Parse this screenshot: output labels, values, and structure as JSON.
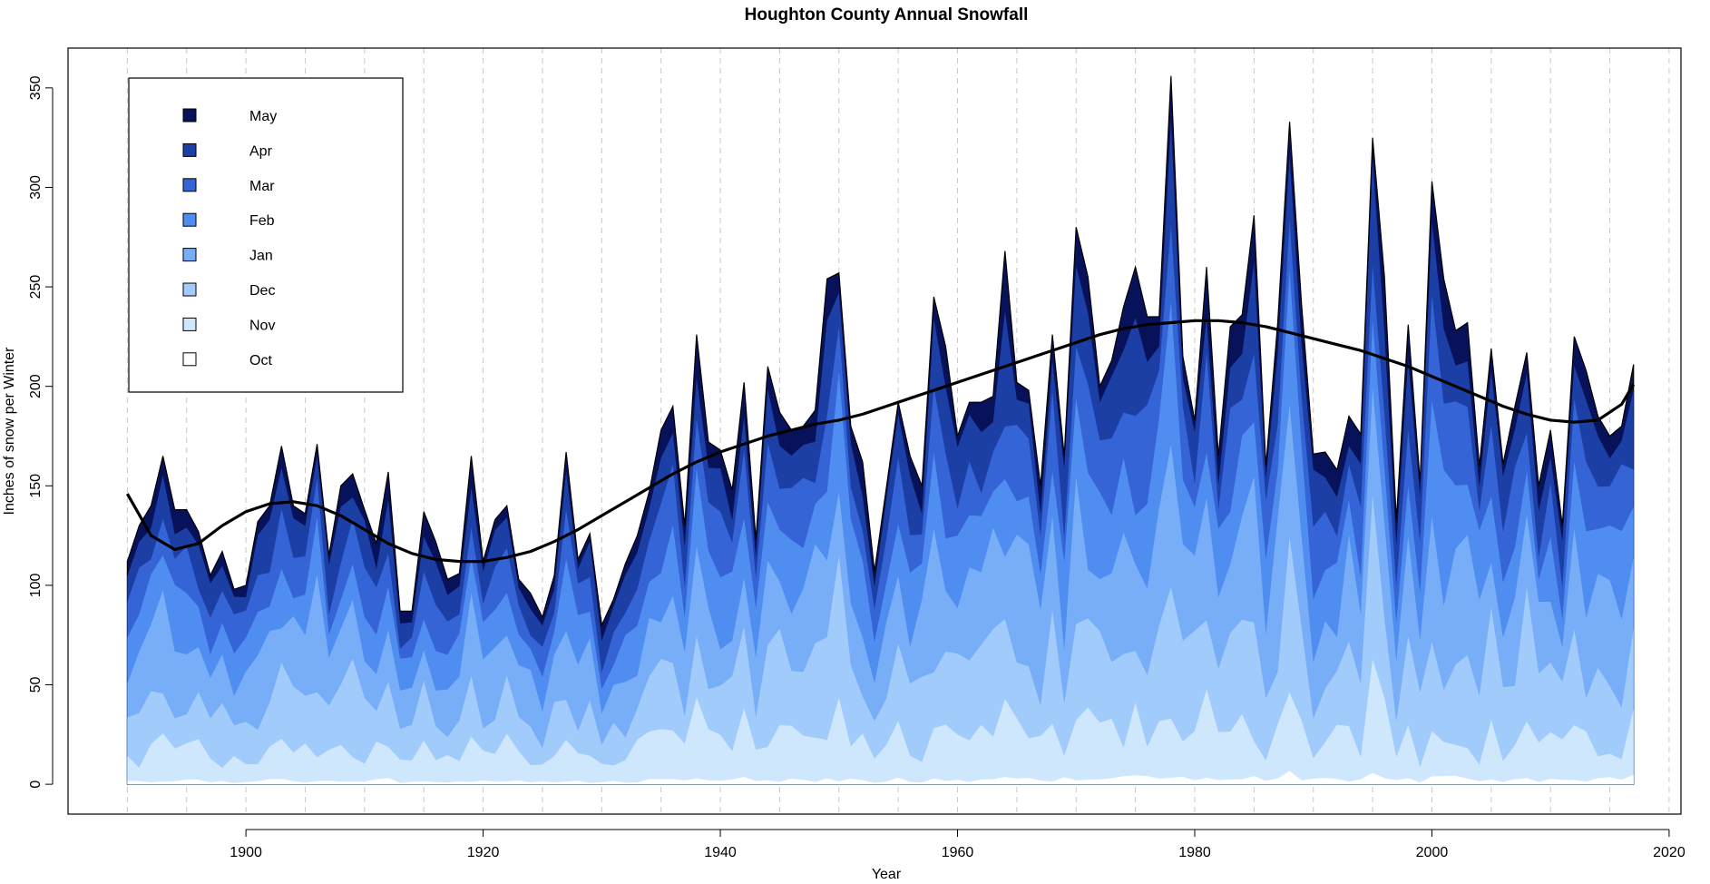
{
  "chart_data": {
    "type": "area",
    "stacked": true,
    "title": "Houghton County Annual Snowfall",
    "xlabel": "Year",
    "ylabel": "Inches of snow per Winter",
    "xlim": [
      1885,
      2021
    ],
    "ylim": [
      -15,
      370
    ],
    "x_ticks": [
      1900,
      1920,
      1940,
      1960,
      1980,
      2000,
      2020
    ],
    "y_ticks": [
      0,
      50,
      100,
      150,
      200,
      250,
      300,
      350
    ],
    "grid": "vertical dashed lines every 5 years",
    "legend_position": "top-left",
    "legend": [
      {
        "label": "May",
        "color": "#08125a"
      },
      {
        "label": "Apr",
        "color": "#1c3fa6"
      },
      {
        "label": "Mar",
        "color": "#3464d6"
      },
      {
        "label": "Feb",
        "color": "#4f8ef0"
      },
      {
        "label": "Jan",
        "color": "#78adf8"
      },
      {
        "label": "Dec",
        "color": "#a1cbfb"
      },
      {
        "label": "Nov",
        "color": "#cfe7fd"
      },
      {
        "label": "Oct",
        "color": "#ffffff"
      }
    ],
    "series_order_bottom_to_top": [
      "Oct",
      "Nov",
      "Dec",
      "Jan",
      "Feb",
      "Mar",
      "Apr",
      "May"
    ],
    "years": [
      1890,
      1891,
      1892,
      1893,
      1894,
      1895,
      1896,
      1897,
      1898,
      1899,
      1900,
      1901,
      1902,
      1903,
      1904,
      1905,
      1906,
      1907,
      1908,
      1909,
      1910,
      1911,
      1912,
      1913,
      1914,
      1915,
      1916,
      1917,
      1918,
      1919,
      1920,
      1921,
      1922,
      1923,
      1924,
      1925,
      1926,
      1927,
      1928,
      1929,
      1930,
      1931,
      1932,
      1933,
      1934,
      1935,
      1936,
      1937,
      1938,
      1939,
      1940,
      1941,
      1942,
      1943,
      1944,
      1945,
      1946,
      1947,
      1948,
      1949,
      1950,
      1951,
      1952,
      1953,
      1954,
      1955,
      1956,
      1957,
      1958,
      1959,
      1960,
      1961,
      1962,
      1963,
      1964,
      1965,
      1966,
      1967,
      1968,
      1969,
      1970,
      1971,
      1972,
      1973,
      1974,
      1975,
      1976,
      1977,
      1978,
      1979,
      1980,
      1981,
      1982,
      1983,
      1984,
      1985,
      1986,
      1987,
      1988,
      1989,
      1990,
      1991,
      1992,
      1993,
      1994,
      1995,
      1996,
      1997,
      1998,
      1999,
      2000,
      2001,
      2002,
      2003,
      2004,
      2005,
      2006,
      2007,
      2008,
      2009,
      2010,
      2011,
      2012,
      2013,
      2014,
      2015,
      2016,
      2017
    ],
    "totals": [
      112,
      130,
      140,
      165,
      138,
      138,
      127,
      105,
      117,
      98,
      100,
      132,
      140,
      170,
      140,
      136,
      171,
      115,
      150,
      156,
      138,
      121,
      157,
      87,
      87,
      137,
      122,
      103,
      106,
      165,
      112,
      133,
      140,
      103,
      96,
      84,
      105,
      167,
      113,
      126,
      80,
      93,
      111,
      125,
      147,
      178,
      190,
      130,
      226,
      172,
      168,
      148,
      202,
      123,
      210,
      187,
      178,
      180,
      188,
      254,
      257,
      180,
      162,
      107,
      149,
      192,
      165,
      150,
      245,
      220,
      175,
      192,
      192,
      195,
      268,
      202,
      198,
      150,
      226,
      165,
      280,
      255,
      200,
      213,
      240,
      260,
      235,
      235,
      356,
      215,
      183,
      260,
      165,
      230,
      236,
      286,
      160,
      232,
      333,
      242,
      166,
      167,
      158,
      185,
      176,
      325,
      255,
      133,
      231,
      152,
      303,
      254,
      228,
      232,
      160,
      219,
      161,
      190,
      217,
      150,
      178,
      130,
      225,
      208,
      185,
      175,
      180,
      211
    ],
    "trend_line": [
      [
        1890,
        146
      ],
      [
        1892,
        125
      ],
      [
        1894,
        118
      ],
      [
        1896,
        121
      ],
      [
        1898,
        130
      ],
      [
        1900,
        137
      ],
      [
        1902,
        141
      ],
      [
        1904,
        142
      ],
      [
        1906,
        140
      ],
      [
        1908,
        135
      ],
      [
        1910,
        128
      ],
      [
        1912,
        121
      ],
      [
        1914,
        116
      ],
      [
        1916,
        113
      ],
      [
        1918,
        112
      ],
      [
        1920,
        112
      ],
      [
        1922,
        114
      ],
      [
        1924,
        117
      ],
      [
        1926,
        122
      ],
      [
        1928,
        128
      ],
      [
        1930,
        135
      ],
      [
        1932,
        142
      ],
      [
        1934,
        149
      ],
      [
        1936,
        156
      ],
      [
        1938,
        162
      ],
      [
        1940,
        167
      ],
      [
        1942,
        171
      ],
      [
        1944,
        175
      ],
      [
        1946,
        178
      ],
      [
        1948,
        181
      ],
      [
        1950,
        183
      ],
      [
        1952,
        186
      ],
      [
        1954,
        190
      ],
      [
        1956,
        194
      ],
      [
        1958,
        198
      ],
      [
        1960,
        202
      ],
      [
        1962,
        206
      ],
      [
        1964,
        210
      ],
      [
        1966,
        214
      ],
      [
        1968,
        218
      ],
      [
        1970,
        222
      ],
      [
        1972,
        226
      ],
      [
        1974,
        229
      ],
      [
        1976,
        231
      ],
      [
        1978,
        232
      ],
      [
        1980,
        233
      ],
      [
        1982,
        233
      ],
      [
        1984,
        232
      ],
      [
        1986,
        230
      ],
      [
        1988,
        227
      ],
      [
        1990,
        224
      ],
      [
        1992,
        221
      ],
      [
        1994,
        218
      ],
      [
        1996,
        214
      ],
      [
        1998,
        210
      ],
      [
        2000,
        205
      ],
      [
        2002,
        200
      ],
      [
        2004,
        195
      ],
      [
        2006,
        190
      ],
      [
        2008,
        186
      ],
      [
        2010,
        183
      ],
      [
        2012,
        182
      ],
      [
        2014,
        183
      ],
      [
        2016,
        191
      ],
      [
        2017,
        201
      ]
    ]
  }
}
